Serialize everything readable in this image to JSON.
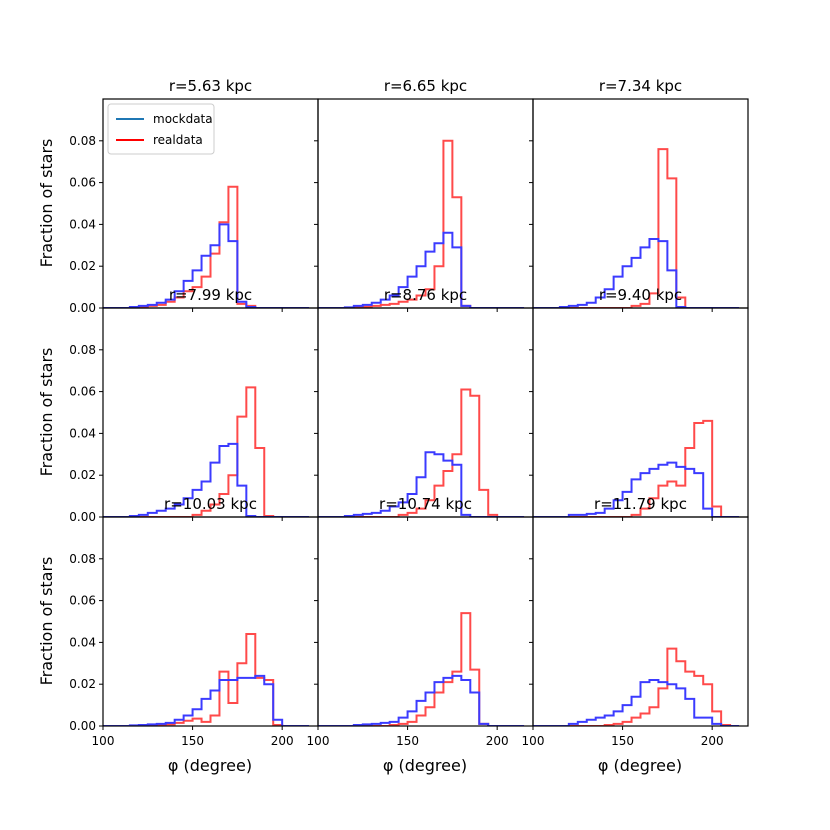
{
  "figure": {
    "ylabel": "Fraction of stars",
    "xlabel": "φ (degree)",
    "legend": {
      "placement": "top-left",
      "entries": [
        {
          "name": "mockdata",
          "color": "#1f77b4"
        },
        {
          "name": "realdata",
          "color": "#ff0000"
        }
      ]
    },
    "colors": {
      "mock_step": "#3b3bff",
      "real_step": "#ff4a4a"
    }
  },
  "chart_data": {
    "type": "histogram-step",
    "bin_edges": [
      100,
      105,
      110,
      115,
      120,
      125,
      130,
      135,
      140,
      145,
      150,
      155,
      160,
      165,
      170,
      175,
      180,
      185,
      190,
      195,
      200,
      205,
      210,
      215
    ],
    "xlim": [
      100,
      220
    ],
    "ylim": [
      0,
      0.1
    ],
    "xticks": [
      100,
      150,
      200
    ],
    "yticks": [
      "0.00",
      "0.02",
      "0.04",
      "0.06",
      "0.08"
    ],
    "panels": [
      {
        "title": "r=5.63 kpc",
        "mock": [
          0,
          0,
          0,
          0.0005,
          0.001,
          0.0015,
          0.0025,
          0.004,
          0.008,
          0.013,
          0.018,
          0.025,
          0.03,
          0.04,
          0.032,
          0.003,
          0.0005,
          0,
          0,
          0,
          0,
          0,
          0
        ],
        "real": [
          0,
          0,
          0,
          0,
          0.0005,
          0.001,
          0.0015,
          0.003,
          0.005,
          0.008,
          0.01,
          0.015,
          0.026,
          0.041,
          0.058,
          0.002,
          0.001,
          0,
          0,
          0,
          0,
          0,
          0
        ]
      },
      {
        "title": "r=6.65 kpc",
        "mock": [
          0,
          0,
          0,
          0.0003,
          0.001,
          0.0015,
          0.0025,
          0.004,
          0.006,
          0.01,
          0.015,
          0.02,
          0.027,
          0.031,
          0.036,
          0.029,
          0.001,
          0,
          0,
          0,
          0,
          0,
          0
        ],
        "real": [
          0,
          0,
          0,
          0,
          0.0003,
          0.0006,
          0.001,
          0.0015,
          0.002,
          0.003,
          0.004,
          0.006,
          0.009,
          0.02,
          0.08,
          0.053,
          0.001,
          0,
          0,
          0,
          0,
          0,
          0
        ]
      },
      {
        "title": "r=7.34 kpc",
        "mock": [
          0,
          0,
          0,
          0.0005,
          0.001,
          0.0015,
          0.0025,
          0.005,
          0.009,
          0.015,
          0.02,
          0.024,
          0.029,
          0.033,
          0.032,
          0.018,
          0.0005,
          0,
          0,
          0,
          0,
          0,
          0
        ],
        "real": [
          0,
          0,
          0,
          0,
          0,
          0,
          0,
          0,
          0,
          0,
          0,
          0.001,
          0.002,
          0.007,
          0.076,
          0.062,
          0.005,
          0,
          0,
          0,
          0,
          0,
          0
        ]
      },
      {
        "title": "r=7.99 kpc",
        "mock": [
          0,
          0,
          0,
          0.0005,
          0.001,
          0.002,
          0.003,
          0.004,
          0.006,
          0.009,
          0.013,
          0.017,
          0.026,
          0.034,
          0.035,
          0.015,
          0.0005,
          0,
          0,
          0,
          0,
          0,
          0
        ],
        "real": [
          0,
          0,
          0,
          0,
          0,
          0,
          0,
          0,
          0,
          0,
          0.001,
          0.003,
          0.006,
          0.011,
          0.02,
          0.048,
          0.062,
          0.033,
          0.0005,
          0,
          0,
          0,
          0
        ]
      },
      {
        "title": "r=8.76 kpc",
        "mock": [
          0,
          0,
          0,
          0.0005,
          0.001,
          0.0015,
          0.002,
          0.003,
          0.005,
          0.007,
          0.011,
          0.019,
          0.031,
          0.03,
          0.027,
          0.025,
          0.001,
          0,
          0,
          0,
          0,
          0,
          0
        ],
        "real": [
          0,
          0,
          0,
          0,
          0,
          0,
          0,
          0,
          0,
          0.001,
          0.002,
          0.004,
          0.008,
          0.015,
          0.022,
          0.03,
          0.061,
          0.058,
          0.013,
          0.001,
          0,
          0,
          0
        ]
      },
      {
        "title": "r=9.40 kpc",
        "mock": [
          0,
          0,
          0,
          0,
          0.001,
          0.001,
          0.0015,
          0.002,
          0.004,
          0.008,
          0.012,
          0.018,
          0.021,
          0.023,
          0.025,
          0.026,
          0.024,
          0.023,
          0.021,
          0.004,
          0,
          0,
          0
        ],
        "real": [
          0,
          0,
          0,
          0,
          0,
          0,
          0,
          0,
          0,
          0,
          0,
          0.001,
          0.004,
          0.009,
          0.015,
          0.017,
          0.015,
          0.033,
          0.045,
          0.046,
          0.005,
          0,
          0
        ]
      },
      {
        "title": "r=10.03 kpc",
        "mock": [
          0,
          0,
          0,
          0.0003,
          0.0005,
          0.0008,
          0.001,
          0.0015,
          0.003,
          0.005,
          0.008,
          0.013,
          0.017,
          0.022,
          0.022,
          0.023,
          0.023,
          0.024,
          0.02,
          0.003,
          0,
          0,
          0
        ],
        "real": [
          0,
          0,
          0,
          0,
          0,
          0.0003,
          0.0005,
          0.0008,
          0.0015,
          0.0025,
          0.0035,
          0.002,
          0.005,
          0.026,
          0.011,
          0.03,
          0.044,
          0.023,
          0.022,
          0.0005,
          0,
          0,
          0
        ]
      },
      {
        "title": "r=10.74 kpc",
        "mock": [
          0,
          0,
          0,
          0,
          0.0005,
          0.0008,
          0.001,
          0.0015,
          0.002,
          0.004,
          0.007,
          0.012,
          0.016,
          0.021,
          0.023,
          0.024,
          0.022,
          0.016,
          0.001,
          0,
          0,
          0,
          0
        ],
        "real": [
          0,
          0,
          0,
          0,
          0,
          0,
          0,
          0,
          0.0005,
          0.001,
          0.002,
          0.005,
          0.009,
          0.016,
          0.021,
          0.026,
          0.054,
          0.027,
          0.001,
          0,
          0,
          0,
          0
        ]
      },
      {
        "title": "r=11.79 kpc",
        "mock": [
          0,
          0,
          0,
          0,
          0.001,
          0.002,
          0.003,
          0.004,
          0.005,
          0.007,
          0.01,
          0.014,
          0.021,
          0.022,
          0.021,
          0.02,
          0.018,
          0.013,
          0.004,
          0.004,
          0.001,
          0,
          0
        ],
        "real": [
          0,
          0,
          0,
          0,
          0,
          0,
          0,
          0,
          0.0005,
          0.001,
          0.002,
          0.004,
          0.006,
          0.009,
          0.018,
          0.037,
          0.031,
          0.026,
          0.024,
          0.02,
          0.007,
          0.0005,
          0
        ]
      }
    ]
  }
}
